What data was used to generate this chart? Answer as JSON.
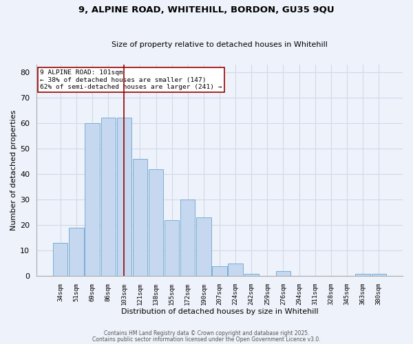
{
  "title_line1": "9, ALPINE ROAD, WHITEHILL, BORDON, GU35 9QU",
  "title_line2": "Size of property relative to detached houses in Whitehill",
  "xlabel": "Distribution of detached houses by size in Whitehill",
  "ylabel": "Number of detached properties",
  "categories": [
    "34sqm",
    "51sqm",
    "69sqm",
    "86sqm",
    "103sqm",
    "121sqm",
    "138sqm",
    "155sqm",
    "172sqm",
    "190sqm",
    "207sqm",
    "224sqm",
    "242sqm",
    "259sqm",
    "276sqm",
    "294sqm",
    "311sqm",
    "328sqm",
    "345sqm",
    "363sqm",
    "380sqm"
  ],
  "values": [
    13,
    19,
    60,
    62,
    62,
    46,
    42,
    22,
    30,
    23,
    4,
    5,
    1,
    0,
    2,
    0,
    0,
    0,
    0,
    1,
    1
  ],
  "bar_color": "#c5d8f0",
  "bar_edge_color": "#7aadd4",
  "vline_x_index": 4,
  "vline_color": "#990000",
  "annotation_text": "9 ALPINE ROAD: 101sqm\n← 38% of detached houses are smaller (147)\n62% of semi-detached houses are larger (241) →",
  "annotation_box_color": "white",
  "annotation_box_edge_color": "#990000",
  "ylim": [
    0,
    83
  ],
  "yticks": [
    0,
    10,
    20,
    30,
    40,
    50,
    60,
    70,
    80
  ],
  "grid_color": "#d0d8e8",
  "background_color": "#eef2fa",
  "footer_line1": "Contains HM Land Registry data © Crown copyright and database right 2025.",
  "footer_line2": "Contains public sector information licensed under the Open Government Licence v3.0."
}
